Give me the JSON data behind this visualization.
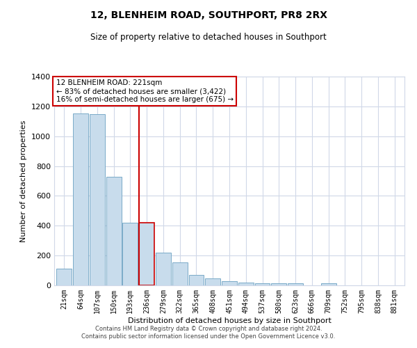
{
  "title": "12, BLENHEIM ROAD, SOUTHPORT, PR8 2RX",
  "subtitle": "Size of property relative to detached houses in Southport",
  "xlabel": "Distribution of detached houses by size in Southport",
  "ylabel": "Number of detached properties",
  "bar_labels": [
    "21sqm",
    "64sqm",
    "107sqm",
    "150sqm",
    "193sqm",
    "236sqm",
    "279sqm",
    "322sqm",
    "365sqm",
    "408sqm",
    "451sqm",
    "494sqm",
    "537sqm",
    "580sqm",
    "623sqm",
    "666sqm",
    "709sqm",
    "752sqm",
    "795sqm",
    "838sqm",
    "881sqm"
  ],
  "bar_values": [
    110,
    1155,
    1150,
    730,
    420,
    420,
    220,
    155,
    70,
    48,
    30,
    18,
    15,
    14,
    12,
    0,
    12,
    0,
    0,
    0,
    0
  ],
  "bar_color": "#c8dcec",
  "bar_edge_color": "#7aaac8",
  "highlight_bar_index": 5,
  "highlight_color": "#cc0000",
  "annotation_title": "12 BLENHEIM ROAD: 221sqm",
  "annotation_line1": "← 83% of detached houses are smaller (3,422)",
  "annotation_line2": "16% of semi-detached houses are larger (675) →",
  "annotation_box_color": "#ffffff",
  "annotation_box_edge": "#cc0000",
  "ylim": [
    0,
    1400
  ],
  "yticks": [
    0,
    200,
    400,
    600,
    800,
    1000,
    1200,
    1400
  ],
  "footer_line1": "Contains HM Land Registry data © Crown copyright and database right 2024.",
  "footer_line2": "Contains public sector information licensed under the Open Government Licence v3.0.",
  "background_color": "#ffffff",
  "grid_color": "#d0d8e8"
}
